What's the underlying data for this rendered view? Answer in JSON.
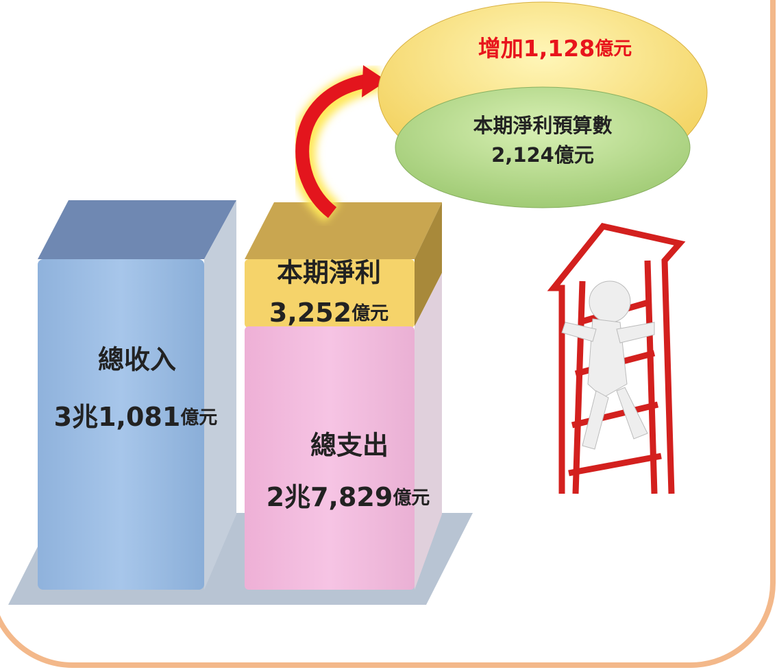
{
  "revenue": {
    "label": "總收入",
    "amount": "3兆1,081",
    "unit": "億元"
  },
  "net_profit": {
    "label": "本期淨利",
    "amount": "3,252",
    "unit": "億元"
  },
  "expense": {
    "label": "總支出",
    "amount": "2兆7,829",
    "unit": "億元"
  },
  "increase": {
    "amount": "增加1,128",
    "unit": "億元"
  },
  "budget": {
    "label": "本期淨利預算數",
    "amount": "2,124億元"
  }
}
